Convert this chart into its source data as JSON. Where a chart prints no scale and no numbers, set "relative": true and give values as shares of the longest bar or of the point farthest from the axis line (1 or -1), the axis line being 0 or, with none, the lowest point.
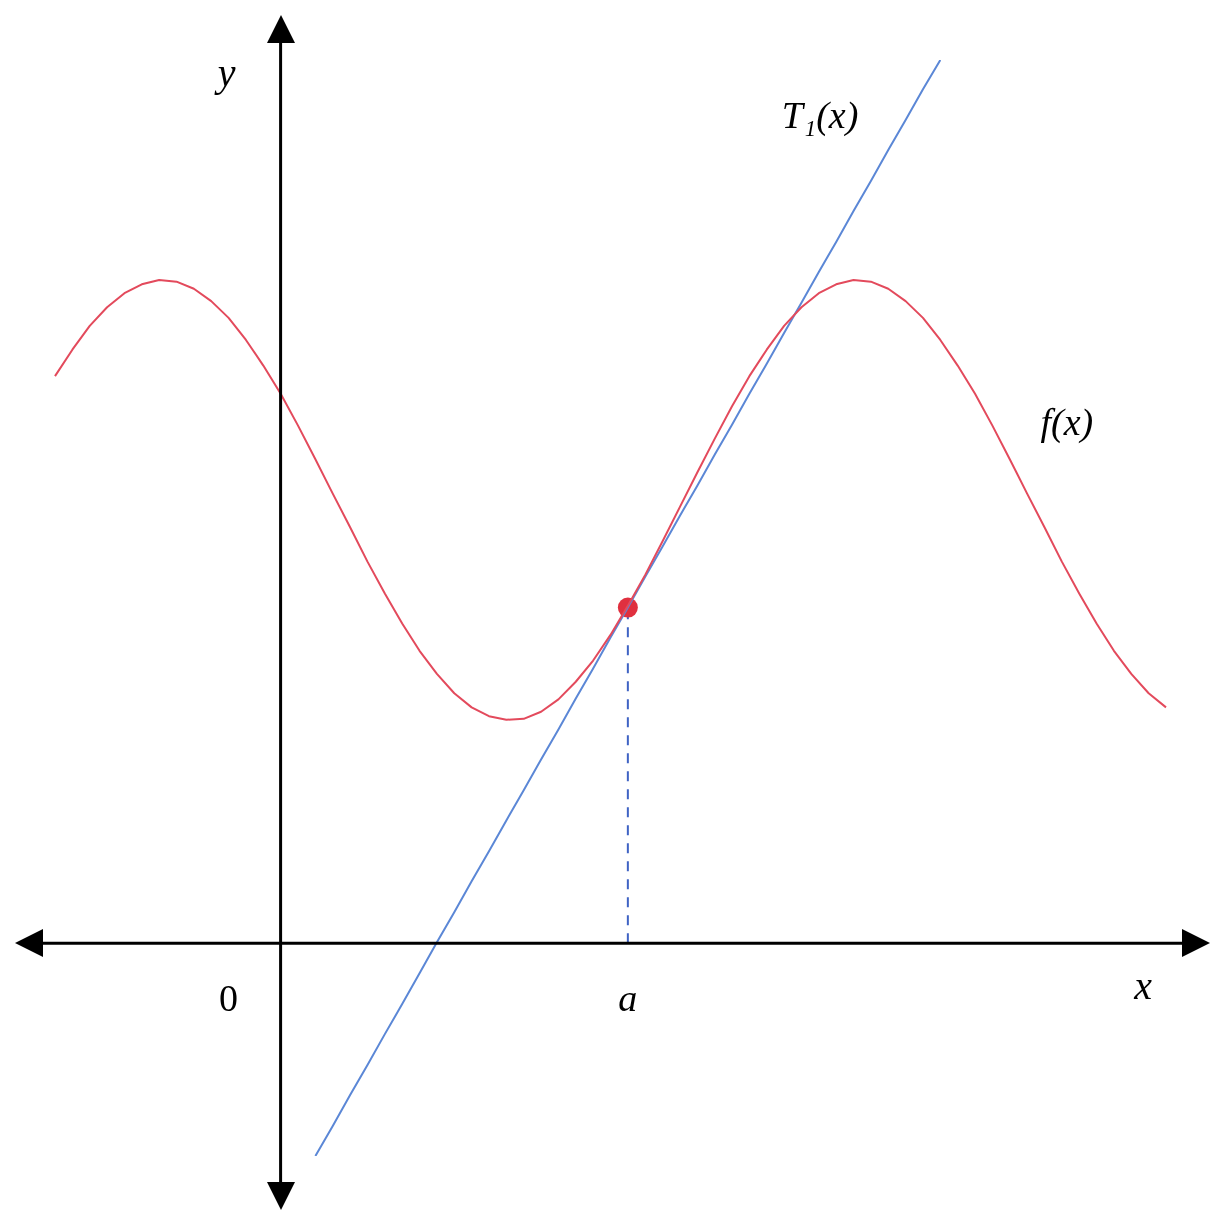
{
  "chart_data": {
    "type": "line",
    "relative": true,
    "xlabel": "x",
    "ylabel": "y",
    "legend": false,
    "categories": [
      null,
      null,
      null,
      null,
      null,
      null,
      null,
      null,
      null,
      null,
      "0",
      null,
      null,
      null,
      null,
      null,
      null,
      null,
      null,
      null,
      null,
      null,
      null,
      null,
      null,
      null,
      null,
      null,
      null,
      null,
      null,
      null,
      null,
      "a",
      null,
      null,
      null,
      null,
      null,
      null,
      null,
      null,
      null,
      null,
      null,
      null,
      null,
      null,
      null,
      null,
      null,
      null,
      null,
      null,
      null,
      null,
      null,
      null,
      null,
      null,
      null,
      null,
      null,
      null,
      null
    ],
    "series": [
      {
        "name": "f(x)",
        "color": "#e34a5c",
        "values": [
          0.642,
          0.672,
          0.699,
          0.72,
          0.736,
          0.746,
          0.751,
          0.749,
          0.741,
          0.727,
          0.708,
          0.683,
          0.654,
          0.622,
          0.586,
          0.548,
          0.509,
          0.471,
          0.432,
          0.396,
          0.362,
          0.331,
          0.305,
          0.283,
          0.267,
          0.257,
          0.253,
          0.254,
          0.262,
          0.276,
          0.296,
          0.32,
          0.349,
          0.382,
          0.417,
          0.455,
          0.494,
          0.533,
          0.571,
          0.608,
          0.642,
          0.672,
          0.699,
          0.72,
          0.736,
          0.746,
          0.751,
          0.749,
          0.741,
          0.727,
          0.708,
          0.683,
          0.654,
          0.622,
          0.586,
          0.548,
          0.509,
          0.471,
          0.432,
          0.396,
          0.362,
          0.331,
          0.305,
          0.283,
          0.267
        ]
      },
      {
        "name": "T₁(x)",
        "color": "#5b87d6",
        "values": [
          null,
          null,
          null,
          null,
          null,
          null,
          null,
          null,
          null,
          null,
          null,
          null,
          null,
          null,
          null,
          -0.241,
          -0.207,
          -0.172,
          -0.138,
          -0.103,
          -0.069,
          -0.034,
          0.001,
          0.035,
          0.07,
          0.104,
          0.139,
          0.173,
          0.208,
          0.242,
          0.277,
          0.311,
          0.346,
          0.38,
          0.415,
          0.449,
          0.484,
          0.518,
          0.553,
          0.587,
          0.622,
          0.656,
          0.691,
          0.725,
          0.76,
          0.794,
          0.829,
          0.863,
          0.898,
          0.932,
          0.967,
          1.0,
          null,
          null,
          null,
          null,
          null,
          null,
          null,
          null,
          null,
          null,
          null,
          null,
          null
        ]
      },
      {
        "type": "scatter",
        "color": "#e0303f",
        "marker": "circle",
        "x": [
          "a"
        ],
        "values": [
          0.38
        ]
      },
      {
        "type": "line",
        "color": "#3f63c4",
        "line_style": "dashed",
        "x": [
          "a",
          "a"
        ],
        "values": [
          0,
          0.38
        ]
      }
    ]
  }
}
